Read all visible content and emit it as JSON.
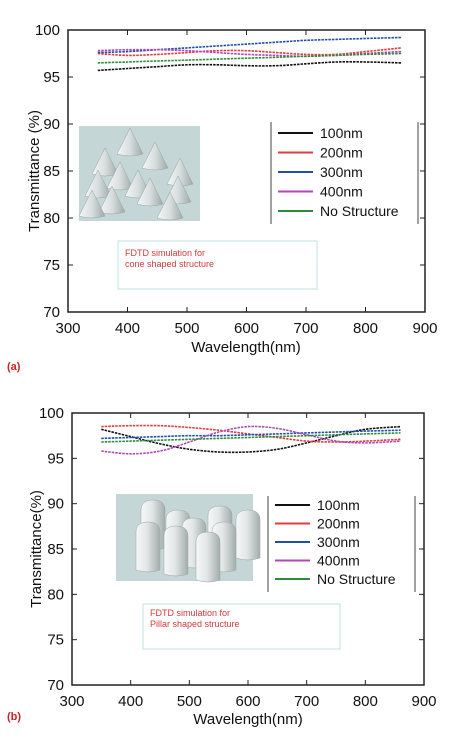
{
  "chart_data": [
    {
      "type": "line",
      "panel_label": "(a)",
      "xlabel": "Wavelength(nm)",
      "ylabel": "Transmittance (%)",
      "xlim": [
        300,
        900
      ],
      "ylim": [
        70,
        100
      ],
      "xticks": [
        300,
        400,
        500,
        600,
        700,
        800,
        900
      ],
      "yticks": [
        70,
        75,
        80,
        85,
        90,
        95,
        100
      ],
      "x": [
        350,
        400,
        450,
        500,
        550,
        600,
        650,
        700,
        750,
        800,
        860
      ],
      "series": [
        {
          "name": "100nm",
          "color": "#111111",
          "values": [
            95.7,
            95.9,
            96.1,
            96.3,
            96.3,
            96.2,
            96.2,
            96.4,
            96.6,
            96.6,
            96.5
          ]
        },
        {
          "name": "200nm",
          "color": "#e23b3b",
          "values": [
            97.5,
            97.3,
            97.4,
            97.6,
            97.8,
            97.8,
            97.6,
            97.4,
            97.4,
            97.7,
            98.1
          ]
        },
        {
          "name": "300nm",
          "color": "#1f4ea8",
          "values": [
            97.6,
            97.7,
            97.9,
            98.1,
            98.3,
            98.5,
            98.7,
            98.9,
            99.0,
            99.1,
            99.2
          ]
        },
        {
          "name": "400nm",
          "color": "#b048b8",
          "values": [
            97.8,
            97.9,
            97.9,
            97.8,
            97.6,
            97.4,
            97.3,
            97.2,
            97.3,
            97.5,
            97.7
          ]
        },
        {
          "name": "No Structure",
          "color": "#2e8b3a",
          "values": [
            96.5,
            96.6,
            96.7,
            96.8,
            96.9,
            97.0,
            97.1,
            97.2,
            97.3,
            97.4,
            97.5
          ]
        }
      ],
      "legend_position": "right",
      "inset_image": "cone-shaped-structures",
      "annotation": [
        "FDTD simulation for",
        "cone shaped structure"
      ]
    },
    {
      "type": "line",
      "panel_label": "(b)",
      "xlabel": "Wavelength(nm)",
      "ylabel": "Transmittance(%)",
      "xlim": [
        300,
        900
      ],
      "ylim": [
        70,
        100
      ],
      "xticks": [
        300,
        400,
        500,
        600,
        700,
        800,
        900
      ],
      "yticks": [
        70,
        75,
        80,
        85,
        90,
        95,
        100
      ],
      "x": [
        350,
        400,
        450,
        500,
        550,
        600,
        650,
        700,
        750,
        800,
        860
      ],
      "series": [
        {
          "name": "100nm",
          "color": "#111111",
          "values": [
            98.2,
            97.4,
            96.6,
            96.0,
            95.7,
            95.7,
            96.0,
            96.7,
            97.5,
            98.2,
            98.5
          ]
        },
        {
          "name": "200nm",
          "color": "#e23b3b",
          "values": [
            98.5,
            98.6,
            98.6,
            98.4,
            98.1,
            97.7,
            97.3,
            96.9,
            96.8,
            96.9,
            97.1
          ]
        },
        {
          "name": "300nm",
          "color": "#1f4ea8",
          "values": [
            97.2,
            97.3,
            97.4,
            97.5,
            97.5,
            97.6,
            97.7,
            97.8,
            97.9,
            98.0,
            98.1
          ]
        },
        {
          "name": "400nm",
          "color": "#b048b8",
          "values": [
            95.8,
            95.5,
            95.8,
            96.8,
            97.9,
            98.5,
            98.3,
            97.6,
            96.9,
            96.7,
            96.9
          ]
        },
        {
          "name": "No Structure",
          "color": "#2e8b3a",
          "values": [
            96.8,
            96.9,
            97.0,
            97.1,
            97.2,
            97.3,
            97.4,
            97.5,
            97.6,
            97.7,
            97.8
          ]
        }
      ],
      "legend_position": "right",
      "inset_image": "pillar-shaped-structures",
      "annotation": [
        "FDTD simulation for",
        "Pillar shaped structure"
      ]
    }
  ]
}
